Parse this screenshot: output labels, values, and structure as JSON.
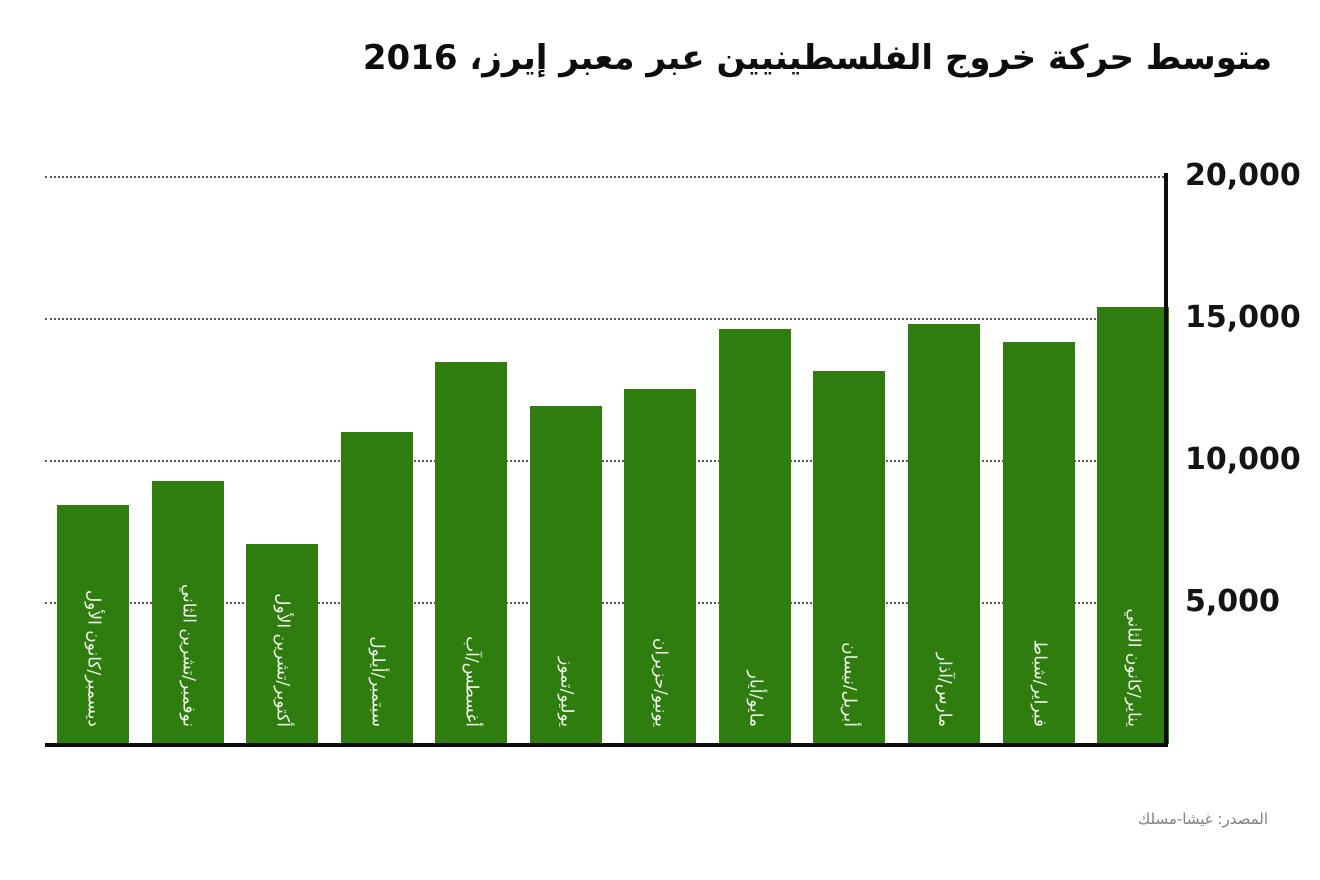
{
  "title": "متوسط حركة خروج الفلسطينيين عبر معبر إيرز، 2016",
  "source": "المصدر: غيشا-مسلك",
  "colors": {
    "bar": "#2e7d0e",
    "bar_label": "#f2f8ec",
    "axis": "#0d0d0d",
    "gridline": "#595959",
    "tick_label": "#141414",
    "source_text": "#7f7f7f",
    "background": "#ffffff"
  },
  "chart_data": {
    "type": "bar",
    "title": "متوسط حركة خروج الفلسطينيين عبر معبر إيرز، 2016",
    "xlabel": "",
    "ylabel": "",
    "categories": [
      "يناير/كانون الثاني",
      "فبراير/شباط",
      "مارس/آذار",
      "أبريل/نيسان",
      "مايو/أيار",
      "يونيو/حزيران",
      "يوليو/تموز",
      "أغسطس/آب",
      "سبتمبر/أيلول",
      "أكتوبر/تشرين الأول",
      "نوفمبر/تشرين الثاني",
      "ديسمبر/كانون الأول"
    ],
    "values": [
      15400,
      14150,
      14800,
      13150,
      14600,
      12500,
      11900,
      13450,
      11000,
      7050,
      9250,
      8400
    ],
    "ylim": [
      0,
      20000
    ],
    "y_ticks": [
      5000,
      10000,
      15000,
      20000
    ],
    "y_tick_labels": [
      "5,000",
      "10,000",
      "15,000",
      "20,000"
    ],
    "axis_side": "right",
    "bar_order": "rtl-first-category-rightmost",
    "grid": "horizontal-dotted",
    "legend": "none",
    "source": "المصدر: غيشا-مسلك"
  }
}
